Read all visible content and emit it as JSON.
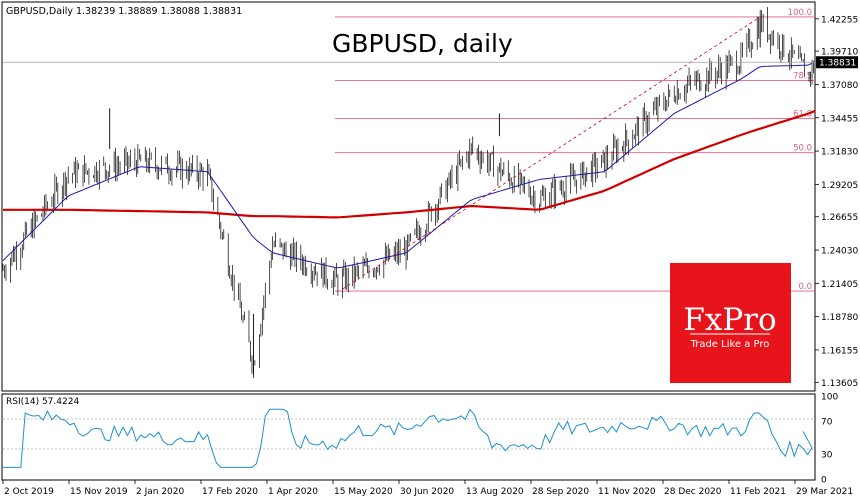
{
  "header": {
    "symbol_line": "GBPUSD,Daily  1.38239 1.38889 1.38088 1.38831",
    "big_title": "GBPUSD, daily"
  },
  "price_axis": {
    "ticks": [
      "1.42255",
      "1.39710",
      "1.37080",
      "1.34455",
      "1.31830",
      "1.29205",
      "1.26655",
      "1.24030",
      "1.21405",
      "1.18780",
      "1.16155",
      "1.13605"
    ],
    "current_price": "1.38831"
  },
  "rsi": {
    "label": "RSI(14) 57.4224",
    "ticks": [
      "100",
      "70",
      "30",
      "0"
    ]
  },
  "x_axis": {
    "dates": [
      "2 Oct 2019",
      "15 Nov 2019",
      "2 Jan 2020",
      "17 Feb 2020",
      "1 Apr 2020",
      "15 May 2020",
      "30 Jun 2020",
      "13 Aug 2020",
      "28 Sep 2020",
      "11 Nov 2020",
      "28 Dec 2020",
      "11 Feb 2021",
      "29 Mar 2021"
    ]
  },
  "fibonacci": {
    "levels": [
      {
        "label": "100.0",
        "price": 1.424
      },
      {
        "label": "78.5",
        "price": 1.374
      },
      {
        "label": "61.8",
        "price": 1.344
      },
      {
        "label": "50.0",
        "price": 1.317
      },
      {
        "label": "0.0",
        "price": 1.208
      }
    ]
  },
  "logo": {
    "brand": "FxPro",
    "tagline": "Trade Like a Pro"
  },
  "colors": {
    "candle": "#000000",
    "ma_fast": "#1a1aa8",
    "ma_slow": "#d00000",
    "fib": "#e06080",
    "rsi": "#1e90d0",
    "logo_bg": "#e8141c"
  },
  "chart_data": {
    "type": "line",
    "title": "GBPUSD, daily",
    "ylim": [
      1.13,
      1.435
    ],
    "x": [
      "2019-10-02",
      "2019-11-15",
      "2020-01-02",
      "2020-02-17",
      "2020-03-19",
      "2020-04-01",
      "2020-05-15",
      "2020-06-30",
      "2020-08-13",
      "2020-09-28",
      "2020-11-11",
      "2020-12-28",
      "2021-02-11",
      "2021-02-24",
      "2021-03-29",
      "2021-04-02"
    ],
    "series": [
      {
        "values": [
          1.225,
          1.3,
          1.31,
          1.3,
          1.15,
          1.245,
          1.215,
          1.24,
          1.32,
          1.28,
          1.31,
          1.365,
          1.39,
          1.42,
          1.378,
          1.388
        ]
      },
      {
        "values": [
          1.232,
          1.283,
          1.306,
          1.302,
          1.25,
          1.238,
          1.226,
          1.238,
          1.28,
          1.296,
          1.302,
          1.348,
          1.375,
          1.385,
          1.386,
          1.389
        ]
      },
      {
        "values": [
          1.272,
          1.272,
          1.271,
          1.27,
          1.267,
          1.267,
          1.266,
          1.27,
          1.275,
          1.272,
          1.287,
          1.312,
          1.331,
          1.336,
          1.348,
          1.35
        ]
      }
    ]
  }
}
